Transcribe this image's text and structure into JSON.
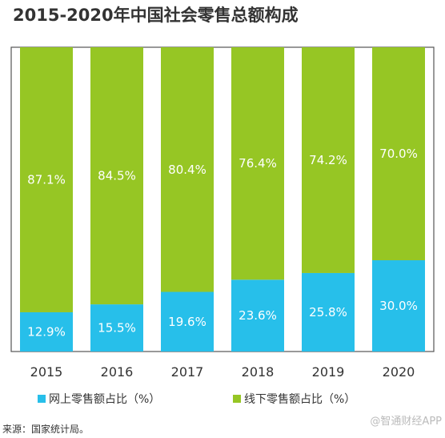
{
  "colors": {
    "online": "#27bfea",
    "offline": "#96c624",
    "frame": "#555555",
    "text": "#333333"
  },
  "source": "来源：国家统计局。",
  "watermark": "@智通财经APP",
  "chart_data": {
    "type": "bar",
    "stacked": true,
    "title": "2015-2020年中国社会零售总额构成",
    "categories": [
      "2015",
      "2016",
      "2017",
      "2018",
      "2019",
      "2020"
    ],
    "series": [
      {
        "name": "网上零售额占比（%）",
        "values": [
          12.9,
          15.5,
          19.6,
          23.6,
          25.8,
          30.0
        ],
        "labels": [
          "12.9%",
          "15.5%",
          "19.6%",
          "23.6%",
          "25.8%",
          "30.0%"
        ]
      },
      {
        "name": "线下零售额占比（%）",
        "values": [
          87.1,
          84.5,
          80.4,
          76.4,
          74.2,
          70.0
        ],
        "labels": [
          "87.1%",
          "84.5%",
          "80.4%",
          "76.4%",
          "74.2%",
          "70.0%"
        ]
      }
    ],
    "ylim": [
      0,
      100
    ],
    "grid": false,
    "legend_position": "bottom"
  }
}
